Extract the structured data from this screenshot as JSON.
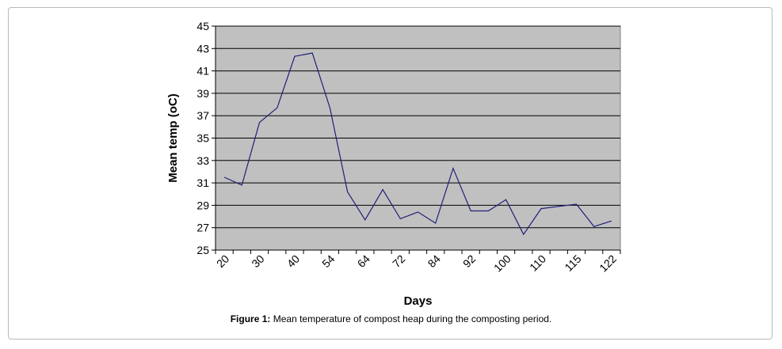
{
  "chart_data": {
    "type": "line",
    "x_tick_labels": [
      "20",
      "30",
      "40",
      "54",
      "64",
      "72",
      "84",
      "92",
      "100",
      "110",
      "115",
      "122"
    ],
    "y_ticks": [
      25,
      27,
      29,
      31,
      33,
      35,
      37,
      39,
      41,
      43,
      45
    ],
    "ylim": [
      25,
      45
    ],
    "xlabel": "Days",
    "ylabel": "Mean temp (oC)",
    "grid": true,
    "background_color": "#c0c0c0",
    "line_color": "#1f1f7a",
    "series": [
      {
        "values": [
          31.5,
          30.8,
          36.4,
          37.7,
          42.3,
          42.6,
          37.7,
          30.2,
          27.7,
          30.4,
          27.8,
          28.4,
          27.4,
          32.3,
          28.5,
          28.5,
          29.5,
          26.4,
          28.7,
          28.9,
          29.1,
          27.1,
          27.6
        ]
      }
    ]
  },
  "caption": {
    "label": "Figure 1:",
    "text": " Mean temperature of compost heap during the composting period."
  }
}
